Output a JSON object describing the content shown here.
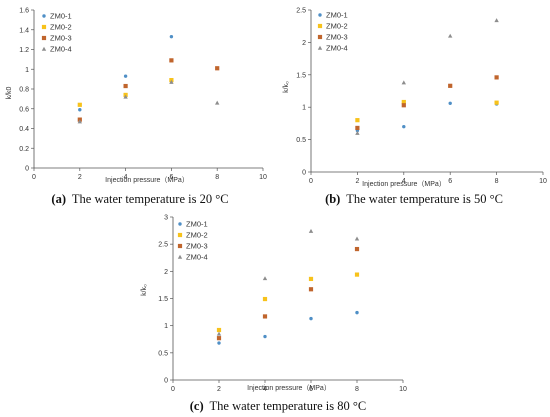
{
  "colors": {
    "ZM0-1": "#4f8fc6",
    "ZM0-2": "#f7c21b",
    "ZM0-3": "#c0652d",
    "ZM0-4": "#8d8d8d"
  },
  "marker_shapes": {
    "ZM0-1": "circle",
    "ZM0-2": "square",
    "ZM0-3": "square",
    "ZM0-4": "triangle"
  },
  "chart_data": [
    {
      "id": "a",
      "type": "scatter",
      "caption_letter": "(a)",
      "caption_text": "The water temperature is 20 °C",
      "xlabel": "Injection pressure（MPa）",
      "ylabel": "k/k0",
      "xlim": [
        0,
        10
      ],
      "ylim": [
        0,
        1.6
      ],
      "xticks": [
        0,
        2,
        4,
        6,
        8,
        10
      ],
      "xtick_labels": [
        "0",
        "2",
        "4",
        "6",
        "8",
        "10"
      ],
      "yticks": [
        0,
        0.2,
        0.4,
        0.6,
        0.8,
        1,
        1.2,
        1.4,
        1.6
      ],
      "ytick_labels": [
        "0",
        "0.2",
        "0.4",
        "0.6",
        "0.8",
        "1",
        "1.2",
        "1.4",
        "1.6"
      ],
      "grid": false,
      "legend_position": "top-left",
      "series": [
        {
          "name": "ZM0-1",
          "x": [
            2,
            4,
            6
          ],
          "y": [
            0.59,
            0.93,
            1.33
          ]
        },
        {
          "name": "ZM0-2",
          "x": [
            2,
            4,
            6
          ],
          "y": [
            0.64,
            0.74,
            0.89
          ]
        },
        {
          "name": "ZM0-3",
          "x": [
            2,
            4,
            6,
            8
          ],
          "y": [
            0.49,
            0.83,
            1.09,
            1.01
          ]
        },
        {
          "name": "ZM0-4",
          "x": [
            2,
            4,
            6,
            8
          ],
          "y": [
            0.47,
            0.72,
            0.87,
            0.66
          ]
        }
      ]
    },
    {
      "id": "b",
      "type": "scatter",
      "caption_letter": "(b)",
      "caption_text": "The water temperature is 50 °C",
      "xlabel": "Injection pressure（MPa）",
      "ylabel": "k/k₀",
      "xlim": [
        0,
        10
      ],
      "ylim": [
        0,
        2.5
      ],
      "xticks": [
        0,
        2,
        4,
        6,
        8,
        10
      ],
      "xtick_labels": [
        "0",
        "2",
        "4",
        "6",
        "8",
        "10"
      ],
      "yticks": [
        0,
        0.5,
        1,
        1.5,
        2,
        2.5
      ],
      "ytick_labels": [
        "0",
        "0.5",
        "1",
        "1.5",
        "2",
        "2.5"
      ],
      "grid": false,
      "legend_position": "top-left",
      "series": [
        {
          "name": "ZM0-1",
          "x": [
            2,
            4,
            6,
            8
          ],
          "y": [
            0.64,
            0.7,
            1.06,
            1.05
          ]
        },
        {
          "name": "ZM0-2",
          "x": [
            2,
            4,
            8
          ],
          "y": [
            0.8,
            1.08,
            1.07
          ]
        },
        {
          "name": "ZM0-3",
          "x": [
            2,
            4,
            6,
            8
          ],
          "y": [
            0.68,
            1.03,
            1.33,
            1.46
          ]
        },
        {
          "name": "ZM0-4",
          "x": [
            2,
            4,
            6,
            8
          ],
          "y": [
            0.6,
            1.38,
            2.1,
            2.34
          ]
        }
      ]
    },
    {
      "id": "c",
      "type": "scatter",
      "caption_letter": "(c)",
      "caption_text": "The water temperature is 80 °C",
      "xlabel": "Injection pressure（MPa）",
      "ylabel": "k/k₀",
      "xlim": [
        0,
        10
      ],
      "ylim": [
        0,
        3
      ],
      "xticks": [
        0,
        2,
        4,
        6,
        8,
        10
      ],
      "xtick_labels": [
        "0",
        "2",
        "4",
        "6",
        "8",
        "10"
      ],
      "yticks": [
        0,
        0.5,
        1,
        1.5,
        2,
        2.5,
        3
      ],
      "ytick_labels": [
        "0",
        "0.5",
        "1",
        "1.5",
        "2",
        "2.5",
        "3"
      ],
      "grid": false,
      "legend_position": "top-left",
      "series": [
        {
          "name": "ZM0-1",
          "x": [
            2,
            4,
            6,
            8
          ],
          "y": [
            0.68,
            0.8,
            1.13,
            1.24
          ]
        },
        {
          "name": "ZM0-2",
          "x": [
            2,
            4,
            6,
            8
          ],
          "y": [
            0.92,
            1.49,
            1.86,
            1.94
          ]
        },
        {
          "name": "ZM0-3",
          "x": [
            2,
            4,
            6,
            8
          ],
          "y": [
            0.77,
            1.17,
            1.67,
            2.41
          ]
        },
        {
          "name": "ZM0-4",
          "x": [
            2,
            4,
            6,
            8
          ],
          "y": [
            0.85,
            1.87,
            2.74,
            2.6
          ]
        }
      ]
    }
  ]
}
